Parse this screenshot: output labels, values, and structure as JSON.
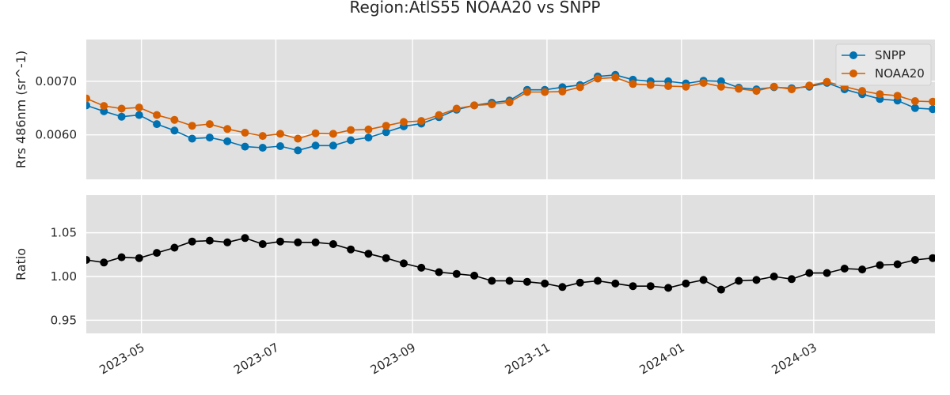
{
  "title": "Region:AtlS55 NOAA20 vs SNPP",
  "colors": {
    "background": "#e0e0e0",
    "grid": "#ffffff",
    "snpp": "#0072b2",
    "noaa20": "#d55e00",
    "ratio": "#000000"
  },
  "chart_data": [
    {
      "type": "line",
      "ylabel": "Rrs 486nm (sr^-1)",
      "ylim": [
        0.00517,
        0.00778
      ],
      "yticks": [
        0.006,
        0.007
      ],
      "ytick_labels": [
        "0.0060",
        "0.0070"
      ],
      "xlim": [
        "2023-04-06",
        "2024-04-25"
      ],
      "grid": true,
      "legend": "top-right",
      "x": [
        "2023-04-06",
        "2023-04-14",
        "2023-04-22",
        "2023-04-30",
        "2023-05-08",
        "2023-05-16",
        "2023-05-24",
        "2023-06-01",
        "2023-06-09",
        "2023-06-17",
        "2023-06-25",
        "2023-07-03",
        "2023-07-11",
        "2023-07-19",
        "2023-07-27",
        "2023-08-04",
        "2023-08-12",
        "2023-08-20",
        "2023-08-28",
        "2023-09-05",
        "2023-09-13",
        "2023-09-21",
        "2023-09-29",
        "2023-10-07",
        "2023-10-15",
        "2023-10-23",
        "2023-10-31",
        "2023-11-08",
        "2023-11-16",
        "2023-11-24",
        "2023-12-02",
        "2023-12-10",
        "2023-12-18",
        "2023-12-26",
        "2024-01-03",
        "2024-01-11",
        "2024-01-19",
        "2024-01-27",
        "2024-02-04",
        "2024-02-12",
        "2024-02-20",
        "2024-02-28",
        "2024-03-07",
        "2024-03-15",
        "2024-03-23",
        "2024-03-31",
        "2024-04-08",
        "2024-04-16",
        "2024-04-24"
      ],
      "series": [
        {
          "name": "SNPP",
          "values": [
            0.00655,
            0.00644,
            0.00634,
            0.00637,
            0.0062,
            0.00608,
            0.00593,
            0.00595,
            0.00588,
            0.00578,
            0.00576,
            0.00579,
            0.00571,
            0.0058,
            0.0058,
            0.0059,
            0.00595,
            0.00605,
            0.00616,
            0.00621,
            0.00633,
            0.00647,
            0.00655,
            0.0066,
            0.00664,
            0.00684,
            0.00684,
            0.00689,
            0.00693,
            0.00709,
            0.00712,
            0.00703,
            0.007,
            0.007,
            0.00696,
            0.00701,
            0.007,
            0.00688,
            0.00685,
            0.00689,
            0.00687,
            0.0069,
            0.00697,
            0.00685,
            0.00676,
            0.00667,
            0.00664,
            0.0065,
            0.00648
          ]
        },
        {
          "name": "NOAA20",
          "values": [
            0.00668,
            0.00654,
            0.00649,
            0.00651,
            0.00637,
            0.00628,
            0.00617,
            0.0062,
            0.00611,
            0.00604,
            0.00598,
            0.00602,
            0.00593,
            0.00603,
            0.00602,
            0.00609,
            0.0061,
            0.00617,
            0.00624,
            0.00626,
            0.00637,
            0.00649,
            0.00655,
            0.00657,
            0.00661,
            0.0068,
            0.0068,
            0.00681,
            0.00689,
            0.00705,
            0.00707,
            0.00695,
            0.00693,
            0.00691,
            0.0069,
            0.00697,
            0.0069,
            0.00686,
            0.00682,
            0.0069,
            0.00685,
            0.00692,
            0.00699,
            0.0069,
            0.00682,
            0.00676,
            0.00673,
            0.00663,
            0.00662
          ]
        }
      ]
    },
    {
      "type": "line",
      "ylabel": "Ratio",
      "ylim": [
        0.935,
        1.093
      ],
      "yticks": [
        0.95,
        1.0,
        1.05
      ],
      "ytick_labels": [
        "0.95",
        "1.00",
        "1.05"
      ],
      "xlim": [
        "2023-04-06",
        "2024-04-25"
      ],
      "grid": true,
      "x": [
        "2023-04-06",
        "2023-04-14",
        "2023-04-22",
        "2023-04-30",
        "2023-05-08",
        "2023-05-16",
        "2023-05-24",
        "2023-06-01",
        "2023-06-09",
        "2023-06-17",
        "2023-06-25",
        "2023-07-03",
        "2023-07-11",
        "2023-07-19",
        "2023-07-27",
        "2023-08-04",
        "2023-08-12",
        "2023-08-20",
        "2023-08-28",
        "2023-09-05",
        "2023-09-13",
        "2023-09-21",
        "2023-09-29",
        "2023-10-07",
        "2023-10-15",
        "2023-10-23",
        "2023-10-31",
        "2023-11-08",
        "2023-11-16",
        "2023-11-24",
        "2023-12-02",
        "2023-12-10",
        "2023-12-18",
        "2023-12-26",
        "2024-01-03",
        "2024-01-11",
        "2024-01-19",
        "2024-01-27",
        "2024-02-04",
        "2024-02-12",
        "2024-02-20",
        "2024-02-28",
        "2024-03-07",
        "2024-03-15",
        "2024-03-23",
        "2024-03-31",
        "2024-04-08",
        "2024-04-16",
        "2024-04-24"
      ],
      "series": [
        {
          "values": [
            1.019,
            1.016,
            1.022,
            1.021,
            1.027,
            1.033,
            1.04,
            1.041,
            1.039,
            1.044,
            1.037,
            1.04,
            1.039,
            1.039,
            1.037,
            1.031,
            1.026,
            1.021,
            1.015,
            1.01,
            1.005,
            1.003,
            1.001,
            0.995,
            0.995,
            0.994,
            0.992,
            0.988,
            0.993,
            0.995,
            0.992,
            0.989,
            0.989,
            0.987,
            0.992,
            0.996,
            0.985,
            0.995,
            0.996,
            1.0,
            0.997,
            1.004,
            1.004,
            1.009,
            1.008,
            1.013,
            1.014,
            1.019,
            1.021
          ]
        }
      ]
    }
  ],
  "xtick_dates": [
    "2023-05-01",
    "2023-07-01",
    "2023-09-01",
    "2023-11-01",
    "2024-01-01",
    "2024-03-01"
  ],
  "xtick_labels": [
    "2023-05",
    "2023-07",
    "2023-09",
    "2023-11",
    "2024-01",
    "2024-03"
  ]
}
